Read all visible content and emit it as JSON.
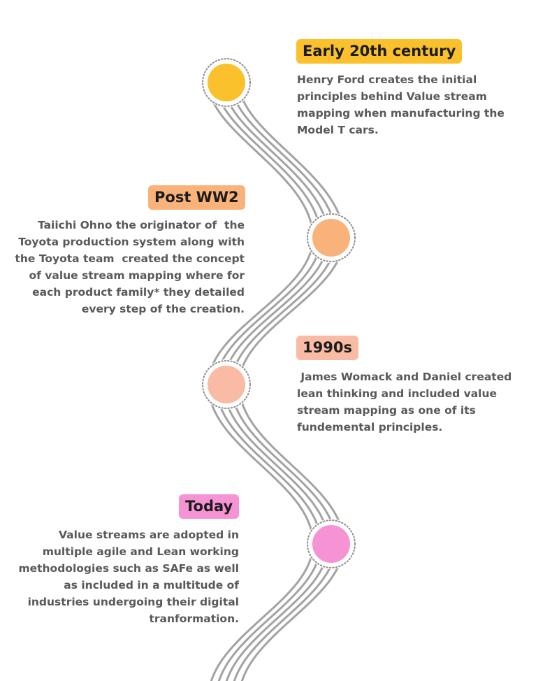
{
  "colors": {
    "road_stroke": "#a3a3a3",
    "dotted_ring": "#8e8e8e",
    "text": "#595959",
    "title_text": "#1c1c1c",
    "milestone_1": "#fbc12c",
    "milestone_2": "#f9b27a",
    "milestone_3": "#f9bba4",
    "milestone_4": "#f593d5"
  },
  "milestones": [
    {
      "title": "Early 20th century",
      "description_lines": [
        "Henry Ford creates the initial",
        "principles behind Value stream",
        "mapping when manufacturing the",
        "Model T cars."
      ]
    },
    {
      "title": "Post WW2",
      "description_lines": [
        "Taiichi Ohno the originator of  the",
        "Toyota production system along with",
        "the Toyota team  created the concept",
        "of value stream mapping where for",
        "each product family* they detailed",
        "every step of the creation."
      ]
    },
    {
      "title": "1990s",
      "description_lines": [
        " James Womack and Daniel created",
        "lean thinking and included value",
        "stream mapping as one of its",
        "fundemental principles."
      ]
    },
    {
      "title": "Today",
      "description_lines": [
        "Value streams are adopted in",
        "multiple agile and Lean working",
        "methodologies such as SAFe as well",
        "as included in a multitude of",
        "industries undergoing their digital",
        "tranformation."
      ]
    }
  ]
}
